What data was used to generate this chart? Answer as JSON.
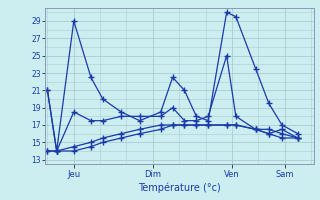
{
  "background_color": "#cceef0",
  "grid_color": "#aacccc",
  "line_color": "#1a3aaa",
  "xlabel": "Température (°c)",
  "xtick_labels": [
    "Jeu",
    "Dim",
    "Ven",
    "Sam"
  ],
  "xtick_positions": [
    1,
    4,
    7,
    9
  ],
  "yticks": [
    13,
    15,
    17,
    19,
    21,
    23,
    25,
    27,
    29
  ],
  "ylim": [
    12.5,
    30.5
  ],
  "xlim": [
    -0.1,
    10.1
  ],
  "series": [
    {
      "x": [
        0.0,
        0.35,
        1.0,
        1.65,
        2.1,
        2.8,
        3.5,
        4.3,
        4.75,
        5.2,
        5.65,
        6.1,
        6.8,
        7.15,
        7.9,
        8.4,
        8.9,
        9.5
      ],
      "y": [
        21,
        14,
        29,
        22.5,
        20,
        18.5,
        17.5,
        18.5,
        22.5,
        21,
        18,
        17.5,
        30,
        29.5,
        23.5,
        19.5,
        17,
        16
      ]
    },
    {
      "x": [
        0.0,
        0.35,
        1.0,
        1.65,
        2.1,
        2.8,
        3.5,
        4.3,
        4.75,
        5.2,
        5.65,
        6.1,
        6.8,
        7.15,
        7.9,
        8.4,
        8.9,
        9.5
      ],
      "y": [
        21,
        14,
        18.5,
        17.5,
        17.5,
        18,
        18,
        18,
        19,
        17.5,
        17.5,
        18,
        25,
        18,
        16.5,
        16,
        16.5,
        15.5
      ]
    },
    {
      "x": [
        0.0,
        0.35,
        1.0,
        1.65,
        2.1,
        2.8,
        3.5,
        4.3,
        4.75,
        5.2,
        5.65,
        6.1,
        6.8,
        7.15,
        7.9,
        8.4,
        8.9,
        9.5
      ],
      "y": [
        14,
        14,
        14,
        14.5,
        15,
        15.5,
        16,
        16.5,
        17,
        17,
        17,
        17,
        17,
        17,
        16.5,
        16.5,
        16,
        15.5
      ]
    },
    {
      "x": [
        0.0,
        0.35,
        1.0,
        1.65,
        2.1,
        2.8,
        3.5,
        4.3,
        4.75,
        5.2,
        5.65,
        6.1,
        6.8,
        7.15,
        7.9,
        8.4,
        8.9,
        9.5
      ],
      "y": [
        14,
        14,
        14.5,
        15,
        15.5,
        16,
        16.5,
        17,
        17,
        17,
        17,
        17,
        17,
        17,
        16.5,
        16,
        15.5,
        15.5
      ]
    }
  ]
}
